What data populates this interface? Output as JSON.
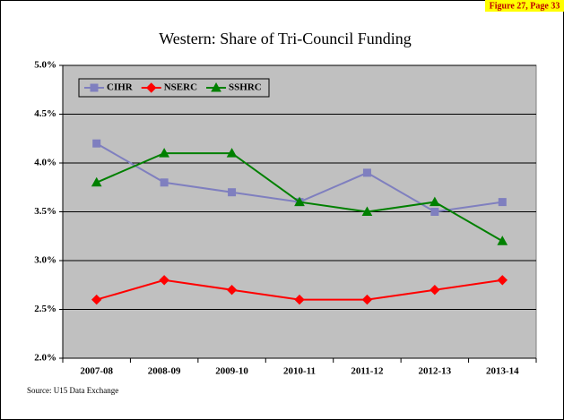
{
  "figure_label": "Figure 27, Page 33",
  "source": "Source:  U15 Data Exchange",
  "chart_data": {
    "type": "line",
    "title": "Western: Share of Tri-Council Funding",
    "categories": [
      "2007-08",
      "2008-09",
      "2009-10",
      "2010-11",
      "2011-12",
      "2012-13",
      "2013-14"
    ],
    "series": [
      {
        "name": "CIHR",
        "color": "#7f7fbf",
        "marker": "square",
        "values": [
          4.2,
          3.8,
          3.7,
          3.6,
          3.9,
          3.5,
          3.6
        ]
      },
      {
        "name": "NSERC",
        "color": "#ff0000",
        "marker": "diamond",
        "values": [
          2.6,
          2.8,
          2.7,
          2.6,
          2.6,
          2.7,
          2.8
        ]
      },
      {
        "name": "SSHRC",
        "color": "#008000",
        "marker": "triangle",
        "values": [
          3.8,
          4.1,
          4.1,
          3.6,
          3.5,
          3.6,
          3.2
        ]
      }
    ],
    "ylim": [
      2.0,
      5.0
    ],
    "yticks": [
      {
        "value": 2.0,
        "label": "2.0%"
      },
      {
        "value": 2.5,
        "label": "2.5%"
      },
      {
        "value": 3.0,
        "label": "3.0%"
      },
      {
        "value": 3.5,
        "label": "3.5%"
      },
      {
        "value": 4.0,
        "label": "4.0%"
      },
      {
        "value": 4.5,
        "label": "4.5%"
      },
      {
        "value": 5.0,
        "label": "5.0%"
      }
    ],
    "grid": true,
    "legend": "top-left",
    "plot_background": "#c0c0c0"
  }
}
